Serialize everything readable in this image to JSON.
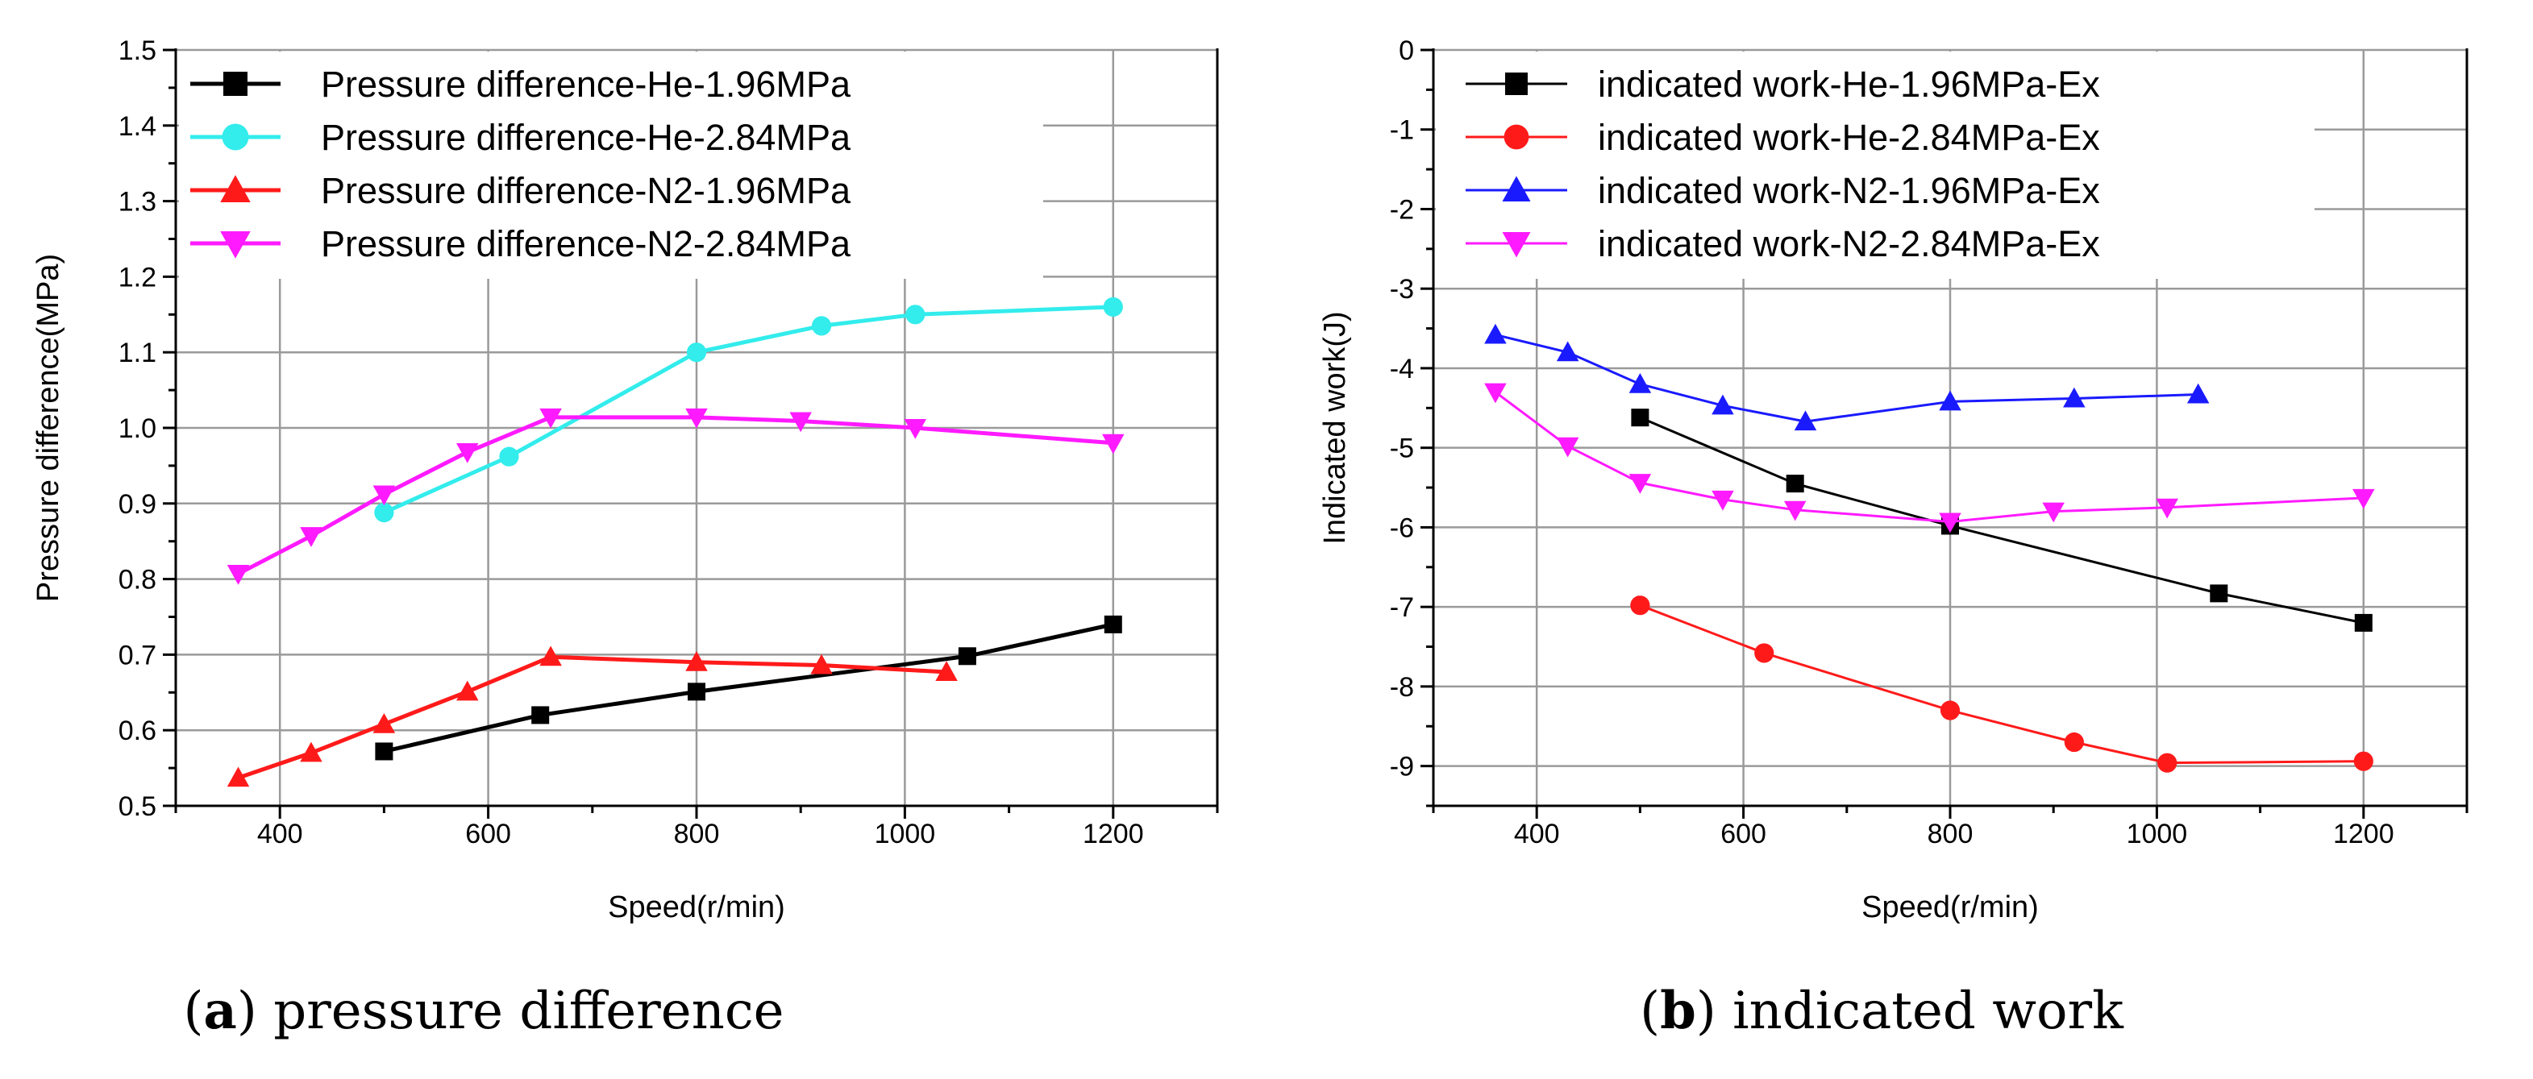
{
  "chart_data": [
    {
      "type": "line",
      "xlabel": "Speed(r/min)",
      "ylabel": "Pressure difference(MPa)",
      "xlim": [
        300,
        1300
      ],
      "ylim": [
        0.5,
        1.5
      ],
      "xticks": [
        400,
        600,
        800,
        1000,
        1200
      ],
      "yticks": [
        0.5,
        0.6,
        0.7,
        0.8,
        0.9,
        1.0,
        1.1,
        1.2,
        1.3,
        1.4,
        1.5
      ],
      "ytick_decimals": 1,
      "grid": true,
      "legend_position": "top-left",
      "series": [
        {
          "name": "Pressure difference-He-1.96MPa",
          "color": "#000000",
          "marker": "square",
          "line_width": 5,
          "x": [
            500,
            650,
            800,
            1060,
            1200
          ],
          "y": [
            0.572,
            0.62,
            0.651,
            0.698,
            0.74
          ]
        },
        {
          "name": "Pressure difference-He-2.84MPa",
          "color": "#33ecec",
          "marker": "circle",
          "line_width": 5,
          "x": [
            500,
            620,
            800,
            920,
            1010,
            1200
          ],
          "y": [
            0.888,
            0.962,
            1.1,
            1.135,
            1.15,
            1.16
          ]
        },
        {
          "name": "Pressure difference-N2-1.96MPa",
          "color": "#ff1a1a",
          "marker": "triangle-up",
          "line_width": 5,
          "x": [
            360,
            430,
            500,
            580,
            660,
            800,
            920,
            1040
          ],
          "y": [
            0.537,
            0.57,
            0.608,
            0.651,
            0.697,
            0.69,
            0.686,
            0.677
          ]
        },
        {
          "name": "Pressure difference-N2-2.84MPa",
          "color": "#ff1aff",
          "marker": "triangle-down",
          "line_width": 5,
          "x": [
            360,
            430,
            500,
            580,
            660,
            800,
            900,
            1010,
            1200
          ],
          "y": [
            0.807,
            0.857,
            0.912,
            0.968,
            1.014,
            1.014,
            1.009,
            1.0,
            0.98
          ]
        }
      ]
    },
    {
      "type": "line",
      "xlabel": "Speed(r/min)",
      "ylabel": "Indicated work(J)",
      "xlim": [
        300,
        1300
      ],
      "ylim": [
        -9.5,
        0
      ],
      "xticks": [
        400,
        600,
        800,
        1000,
        1200
      ],
      "yticks": [
        0,
        -1,
        -2,
        -3,
        -4,
        -5,
        -6,
        -7,
        -8,
        -9
      ],
      "ytick_decimals": 0,
      "grid": true,
      "legend_position": "top-left",
      "series": [
        {
          "name": "indicated work-He-1.96MPa-Ex",
          "color": "#000000",
          "marker": "square",
          "line_width": 3,
          "x": [
            500,
            650,
            800,
            1060,
            1200
          ],
          "y": [
            -4.62,
            -5.45,
            -5.98,
            -6.83,
            -7.2
          ]
        },
        {
          "name": "indicated work-He-2.84MPa-Ex",
          "color": "#ff1a1a",
          "marker": "circle",
          "line_width": 3,
          "x": [
            500,
            620,
            800,
            920,
            1010,
            1200
          ],
          "y": [
            -6.98,
            -7.58,
            -8.3,
            -8.7,
            -8.96,
            -8.94
          ]
        },
        {
          "name": "indicated work-N2-1.96MPa-Ex",
          "color": "#1a1aff",
          "marker": "triangle-up",
          "line_width": 3,
          "x": [
            360,
            430,
            500,
            580,
            660,
            800,
            920,
            1040
          ],
          "y": [
            -3.58,
            -3.8,
            -4.2,
            -4.47,
            -4.67,
            -4.42,
            -4.38,
            -4.33
          ]
        },
        {
          "name": "indicated work-N2-2.84MPa-Ex",
          "color": "#ff1aff",
          "marker": "triangle-down",
          "line_width": 3,
          "x": [
            360,
            430,
            500,
            580,
            650,
            800,
            900,
            1010,
            1200
          ],
          "y": [
            -4.3,
            -4.98,
            -5.44,
            -5.65,
            -5.78,
            -5.93,
            -5.8,
            -5.75,
            -5.63
          ]
        }
      ]
    }
  ],
  "captions": [
    {
      "label": "a",
      "text": " pressure difference"
    },
    {
      "label": "b",
      "text": " indicated work"
    }
  ]
}
